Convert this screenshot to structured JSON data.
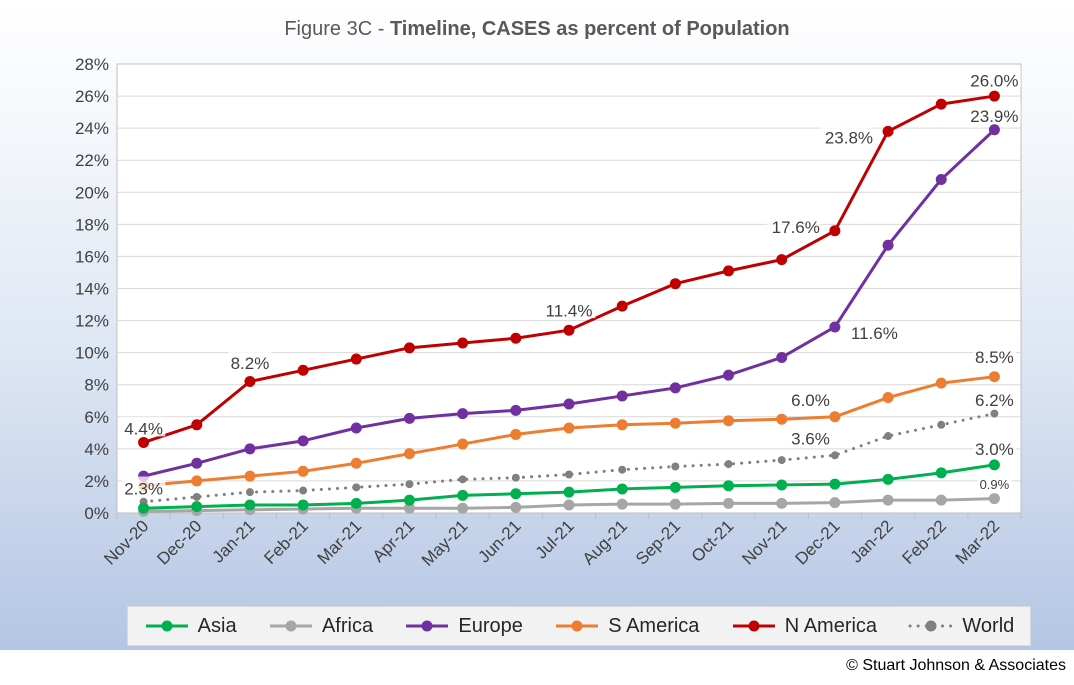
{
  "title": {
    "prefix": "Figure 3C - ",
    "main": "Timeline, CASES as percent of Population"
  },
  "copyright": "© Stuart Johnson & Associates",
  "chart_data": {
    "type": "line",
    "title": "Figure 3C - Timeline, CASES as percent of Population",
    "xlabel": "",
    "ylabel": "",
    "ylim": [
      0,
      28
    ],
    "y_ticks": [
      "0%",
      "2%",
      "4%",
      "6%",
      "8%",
      "10%",
      "12%",
      "14%",
      "16%",
      "18%",
      "20%",
      "22%",
      "24%",
      "26%",
      "28%"
    ],
    "grid": "horizontal",
    "legend_position": "bottom",
    "categories": [
      "Nov-20",
      "Dec-20",
      "Jan-21",
      "Feb-21",
      "Mar-21",
      "Apr-21",
      "May-21",
      "Jun-21",
      "Jul-21",
      "Aug-21",
      "Sep-21",
      "Oct-21",
      "Nov-21",
      "Dec-21",
      "Jan-22",
      "Feb-22",
      "Mar-22"
    ],
    "series": [
      {
        "name": "Asia",
        "color": "#00b050",
        "style": "solid",
        "values": [
          0.3,
          0.4,
          0.5,
          0.5,
          0.6,
          0.8,
          1.1,
          1.2,
          1.3,
          1.5,
          1.6,
          1.7,
          1.75,
          1.8,
          2.1,
          2.5,
          3.0
        ]
      },
      {
        "name": "Africa",
        "color": "#a6a6a6",
        "style": "solid",
        "values": [
          0.1,
          0.15,
          0.2,
          0.25,
          0.3,
          0.3,
          0.3,
          0.35,
          0.5,
          0.55,
          0.55,
          0.6,
          0.6,
          0.65,
          0.8,
          0.8,
          0.9
        ]
      },
      {
        "name": "Europe",
        "color": "#7030a0",
        "style": "solid",
        "values": [
          2.3,
          3.1,
          4.0,
          4.5,
          5.3,
          5.9,
          6.2,
          6.4,
          6.8,
          7.3,
          7.8,
          8.6,
          9.7,
          11.6,
          16.7,
          20.8,
          23.9
        ]
      },
      {
        "name": "S America",
        "color": "#ed7d31",
        "style": "solid",
        "values": [
          1.7,
          2.0,
          2.3,
          2.6,
          3.1,
          3.7,
          4.3,
          4.9,
          5.3,
          5.5,
          5.6,
          5.75,
          5.85,
          6.0,
          7.2,
          8.1,
          8.5
        ]
      },
      {
        "name": "N America",
        "color": "#c00000",
        "style": "solid",
        "values": [
          4.4,
          5.5,
          8.2,
          8.9,
          9.6,
          10.3,
          10.6,
          10.9,
          11.4,
          12.9,
          14.3,
          15.1,
          15.8,
          17.6,
          23.8,
          25.5,
          26.0
        ]
      },
      {
        "name": "World",
        "color": "#808080",
        "style": "dotted",
        "values": [
          0.7,
          1.0,
          1.3,
          1.4,
          1.6,
          1.8,
          2.1,
          2.2,
          2.4,
          2.7,
          2.9,
          3.05,
          3.3,
          3.6,
          4.8,
          5.5,
          6.2
        ]
      }
    ],
    "annotations": [
      {
        "series": "N America",
        "index": 0,
        "text": "4.4%"
      },
      {
        "series": "Europe",
        "index": 0,
        "text": "2.3%"
      },
      {
        "series": "N America",
        "index": 2,
        "text": "8.2%"
      },
      {
        "series": "N America",
        "index": 8,
        "text": "11.4%"
      },
      {
        "series": "N America",
        "index": 13,
        "text": "17.6%"
      },
      {
        "series": "N America",
        "index": 14,
        "text": "23.8%"
      },
      {
        "series": "N America",
        "index": 16,
        "text": "26.0%"
      },
      {
        "series": "Europe",
        "index": 16,
        "text": "23.9%"
      },
      {
        "series": "Europe",
        "index": 13,
        "text": "11.6%"
      },
      {
        "series": "S America",
        "index": 13,
        "text": "6.0%"
      },
      {
        "series": "S America",
        "index": 16,
        "text": "8.5%"
      },
      {
        "series": "World",
        "index": 13,
        "text": "3.6%"
      },
      {
        "series": "World",
        "index": 16,
        "text": "6.2%"
      },
      {
        "series": "Asia",
        "index": 16,
        "text": "3.0%"
      },
      {
        "series": "Africa",
        "index": 16,
        "text": "0.9%"
      }
    ]
  }
}
